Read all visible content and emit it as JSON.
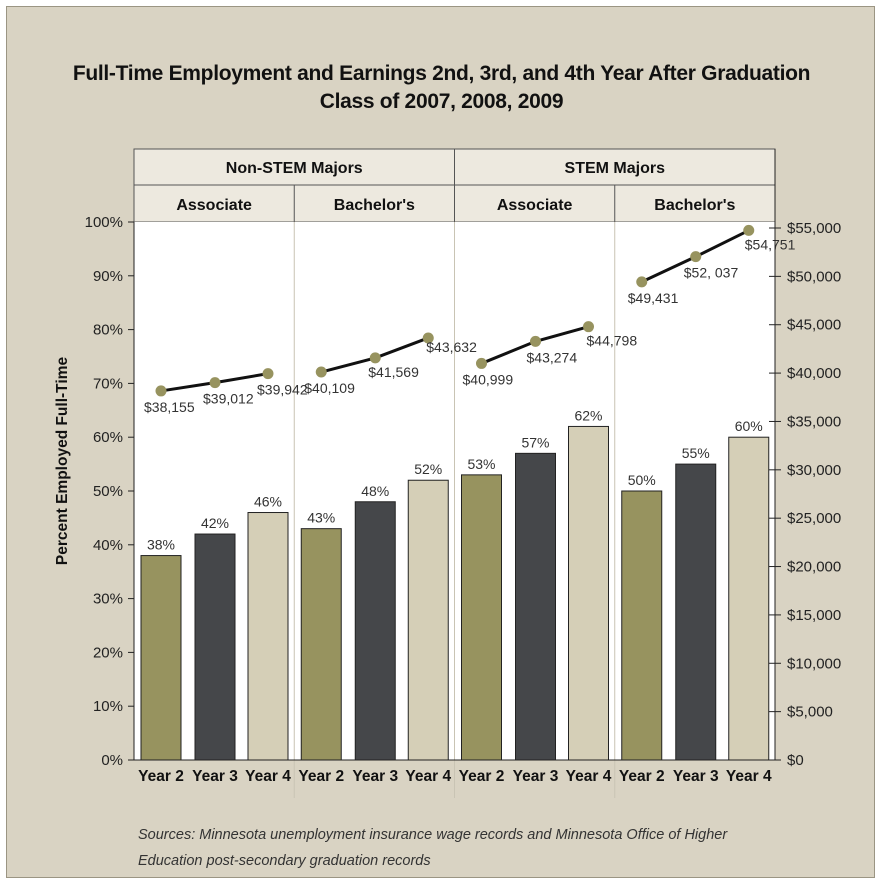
{
  "title_line1": "Full-Time Employment and Earnings 2nd, 3rd, and 4th Year After Graduation",
  "title_line2": "Class of 2007, 2008, 2009",
  "sources": "Sources: Minnesota unemployment insurance wage records and Minnesota Office of Higher Education post-secondary graduation records",
  "colors": {
    "year2": "#97935f",
    "year3": "#45474a",
    "year4": "#d5cfb7",
    "line": "#111111",
    "marker": "#97935f",
    "background": "#d9d3c3",
    "header_fill": "#ede9df"
  },
  "chart_data": {
    "type": "bar",
    "title": "Full-Time Employment and Earnings 2nd, 3rd, and 4th Year After Graduation",
    "subtitle": "Class of 2007, 2008, 2009",
    "ylabel": "Percent Employed Full-Time",
    "ylim": [
      0,
      100
    ],
    "y_ticks": [
      "0%",
      "10%",
      "20%",
      "30%",
      "40%",
      "50%",
      "60%",
      "70%",
      "80%",
      "90%",
      "100%"
    ],
    "y2lim": [
      0,
      55000
    ],
    "y2_ticks": [
      "$0",
      "$5,000",
      "$10,000",
      "$15,000",
      "$20,000",
      "$25,000",
      "$30,000",
      "$35,000",
      "$40,000",
      "$45,000",
      "$50,000",
      "$55,000"
    ],
    "top_groups": [
      "Non-STEM Majors",
      "STEM Majors"
    ],
    "sub_groups": [
      "Associate",
      "Bachelor's",
      "Associate",
      "Bachelor's"
    ],
    "categories": [
      "Year 2",
      "Year 3",
      "Year 4"
    ],
    "percent_employed": [
      [
        38,
        42,
        46
      ],
      [
        43,
        48,
        52
      ],
      [
        53,
        57,
        62
      ],
      [
        50,
        55,
        60
      ]
    ],
    "percent_labels": [
      [
        "38%",
        "42%",
        "46%"
      ],
      [
        "43%",
        "48%",
        "52%"
      ],
      [
        "53%",
        "57%",
        "62%"
      ],
      [
        "50%",
        "55%",
        "60%"
      ]
    ],
    "earnings": [
      [
        38155,
        39012,
        39942
      ],
      [
        40109,
        41569,
        43632
      ],
      [
        40999,
        43274,
        44798
      ],
      [
        49431,
        52037,
        54751
      ]
    ],
    "earnings_labels": [
      [
        "$38,155",
        "$39,012",
        "$39,942"
      ],
      [
        "$40,109",
        "$41,569",
        "$43,632"
      ],
      [
        "$40,999",
        "$43,274",
        "$44,798"
      ],
      [
        "$49,431",
        "$52, 037",
        "$54,751"
      ]
    ],
    "grid": false,
    "legend": "none"
  }
}
